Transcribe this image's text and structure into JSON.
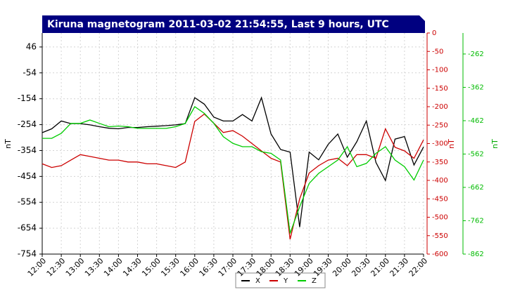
{
  "chart_data": {
    "type": "line",
    "title": "Kiruna magnetogram 2011-03-02 21:54:55, Last 9 hours, UTC",
    "y_label": "nT",
    "y2_label": "nT",
    "y3_label": "nT",
    "x": [
      12,
      12.25,
      12.5,
      12.75,
      13,
      13.25,
      13.5,
      13.75,
      14,
      14.25,
      14.5,
      14.75,
      15,
      15.25,
      15.5,
      15.75,
      16,
      16.25,
      16.5,
      16.75,
      17,
      17.25,
      17.5,
      17.75,
      18,
      18.25,
      18.5,
      18.75,
      19,
      19.25,
      19.5,
      19.75,
      20,
      20.25,
      20.5,
      20.75,
      21,
      21.25,
      21.5,
      21.75,
      22
    ],
    "xlim": [
      12,
      22
    ],
    "xticks": [
      {
        "value": 12,
        "label": "12:00"
      },
      {
        "value": 12.5,
        "label": "12:30"
      },
      {
        "value": 13,
        "label": "13:00"
      },
      {
        "value": 13.5,
        "label": "13:30"
      },
      {
        "value": 14,
        "label": "14:00"
      },
      {
        "value": 14.5,
        "label": "14:30"
      },
      {
        "value": 15,
        "label": "15:00"
      },
      {
        "value": 15.5,
        "label": "15:30"
      },
      {
        "value": 16,
        "label": "16:00"
      },
      {
        "value": 16.5,
        "label": "16:30"
      },
      {
        "value": 17,
        "label": "17:00"
      },
      {
        "value": 17.5,
        "label": "17:30"
      },
      {
        "value": 18,
        "label": "18:00"
      },
      {
        "value": 18.5,
        "label": "18:30"
      },
      {
        "value": 19,
        "label": "19:00"
      },
      {
        "value": 19.5,
        "label": "19:30"
      },
      {
        "value": 20,
        "label": "20:00"
      },
      {
        "value": 20.5,
        "label": "20:30"
      },
      {
        "value": 21,
        "label": "21:00"
      },
      {
        "value": 21.5,
        "label": "21:30"
      },
      {
        "value": 22,
        "label": "22:00"
      }
    ],
    "ylim": [
      -754,
      100
    ],
    "yticks": [
      46,
      -54,
      -154,
      -254,
      -354,
      -454,
      -554,
      -654,
      -754
    ],
    "y2lim": [
      -600,
      0
    ],
    "y2ticks": [
      0,
      -50,
      -100,
      -150,
      -200,
      -250,
      -300,
      -350,
      -400,
      -450,
      -500,
      -550,
      -600
    ],
    "y3lim": [
      -862,
      -199
    ],
    "y3ticks": [
      -262,
      -362,
      -462,
      -562,
      -662,
      -762,
      -862
    ],
    "grid": true,
    "series": [
      {
        "name": "X",
        "color": "#000000",
        "axis": "y",
        "values": [
          -285,
          -270,
          -240,
          -250,
          -250,
          -255,
          -262,
          -268,
          -270,
          -265,
          -265,
          -262,
          -260,
          -258,
          -255,
          -250,
          -150,
          -175,
          -225,
          -240,
          -240,
          -215,
          -240,
          -150,
          -290,
          -350,
          -360,
          -650,
          -360,
          -390,
          -330,
          -290,
          -380,
          -320,
          -240,
          -400,
          -470,
          -310,
          -300,
          -410,
          -340
        ]
      },
      {
        "name": "Y",
        "color": "#cc0000",
        "axis": "y2",
        "values": [
          -355,
          -365,
          -360,
          -345,
          -330,
          -335,
          -340,
          -345,
          -345,
          -350,
          -350,
          -355,
          -355,
          -360,
          -365,
          -350,
          -240,
          -220,
          -245,
          -270,
          -265,
          -280,
          -300,
          -320,
          -340,
          -350,
          -560,
          -450,
          -380,
          -360,
          -345,
          -340,
          -360,
          -330,
          -330,
          -340,
          -260,
          -310,
          -320,
          -340,
          -290
        ]
      },
      {
        "name": "Z",
        "color": "#00cc00",
        "axis": "y3",
        "values": [
          -515,
          -515,
          -500,
          -470,
          -470,
          -460,
          -470,
          -480,
          -478,
          -480,
          -485,
          -485,
          -485,
          -485,
          -480,
          -470,
          -420,
          -440,
          -470,
          -510,
          -530,
          -540,
          -540,
          -555,
          -560,
          -580,
          -800,
          -720,
          -650,
          -620,
          -600,
          -580,
          -540,
          -600,
          -590,
          -560,
          -540,
          -580,
          -600,
          -640,
          -580
        ]
      }
    ]
  }
}
